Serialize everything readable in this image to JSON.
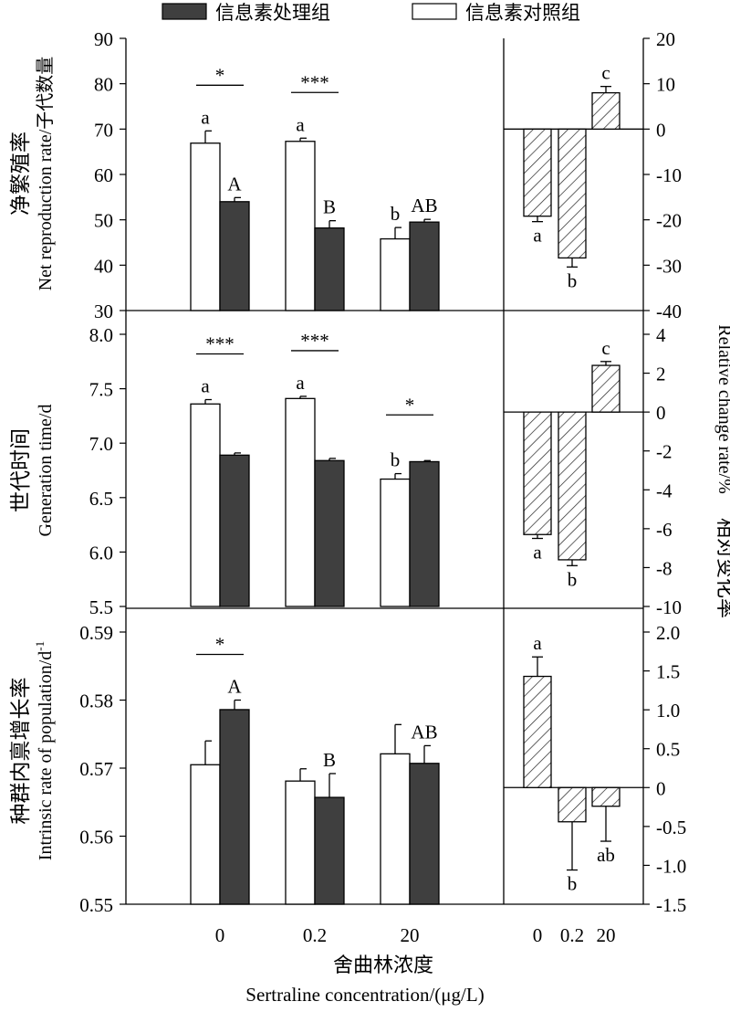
{
  "legend": {
    "treated_label": "信息素处理组",
    "control_label": "信息素对照组",
    "treated_color": "#3f3f3f",
    "control_color": "#ffffff"
  },
  "xaxis": {
    "label_cn": "舍曲林浓度",
    "label_en": "Sertraline concentration/(μg/L)"
  },
  "right_axis_label": {
    "cn": "相对变化率",
    "en": "Relative change rate/%"
  },
  "chart_data": [
    {
      "type": "bar",
      "categories": [
        "0",
        "0.2",
        "20"
      ],
      "ylabel_cn": "净繁殖率",
      "ylabel_en": "Net reproduction rate/子代数量",
      "ylim": [
        30,
        90
      ],
      "yticks": [
        "30",
        "40",
        "50",
        "60",
        "70",
        "80",
        "90"
      ],
      "series": [
        {
          "name": "信息素对照组",
          "values": [
            66.9,
            67.3,
            45.8
          ],
          "errors": [
            2.7,
            0.7,
            2.5
          ],
          "labels": [
            "a",
            "a",
            "b"
          ]
        },
        {
          "name": "信息素处理组",
          "values": [
            54.0,
            48.2,
            49.5
          ],
          "errors": [
            0.9,
            1.6,
            0.6
          ],
          "labels": [
            "A",
            "B",
            "AB"
          ]
        }
      ],
      "significance": [
        "*",
        "***",
        ""
      ],
      "relative_change": {
        "ylim": [
          -40,
          20
        ],
        "yticks": [
          "-40",
          "-30",
          "-20",
          "-10",
          "0",
          "10",
          "20"
        ],
        "categories": [
          "0",
          "0.2",
          "20"
        ],
        "values": [
          -19.2,
          -28.4,
          8.0
        ],
        "errors": [
          1.2,
          2.0,
          1.4
        ],
        "labels": [
          "a",
          "b",
          "c"
        ]
      }
    },
    {
      "type": "bar",
      "categories": [
        "0",
        "0.2",
        "20"
      ],
      "ylabel_cn": "世代时间",
      "ylabel_en": "Generation time/d",
      "ylim": [
        5.5,
        8.0
      ],
      "yticks": [
        "5.5",
        "6.0",
        "6.5",
        "7.0",
        "7.5",
        "8.0"
      ],
      "series": [
        {
          "name": "信息素对照组",
          "values": [
            7.36,
            7.41,
            6.67
          ],
          "errors": [
            0.04,
            0.02,
            0.05
          ],
          "labels": [
            "a",
            "a",
            "b"
          ]
        },
        {
          "name": "信息素处理组",
          "values": [
            6.89,
            6.84,
            6.83
          ],
          "errors": [
            0.02,
            0.02,
            0.01
          ],
          "labels": [
            "",
            "",
            ""
          ]
        }
      ],
      "significance": [
        "***",
        "***",
        "*"
      ],
      "relative_change": {
        "ylim": [
          -10,
          4
        ],
        "yticks": [
          "-10",
          "-8",
          "-6",
          "-4",
          "-2",
          "0",
          "2",
          "4"
        ],
        "categories": [
          "0",
          "0.2",
          "20"
        ],
        "values": [
          -6.3,
          -7.6,
          2.4
        ],
        "errors": [
          0.2,
          0.3,
          0.2
        ],
        "labels": [
          "a",
          "b",
          "c"
        ]
      }
    },
    {
      "type": "bar",
      "categories": [
        "0",
        "0.2",
        "20"
      ],
      "ylabel_cn": "种群内禀增长率",
      "ylabel_en": "Intrinsic rate of population/d",
      "ylabel_sup": "-1",
      "ylim": [
        0.55,
        0.59
      ],
      "yticks": [
        "0.55",
        "0.56",
        "0.57",
        "0.58",
        "0.59"
      ],
      "series": [
        {
          "name": "信息素对照组",
          "values": [
            0.5705,
            0.5681,
            0.5721
          ],
          "errors": [
            0.0035,
            0.0018,
            0.0043
          ],
          "labels": [
            "",
            "",
            ""
          ]
        },
        {
          "name": "信息素处理组",
          "values": [
            0.5786,
            0.5657,
            0.5707
          ],
          "errors": [
            0.0014,
            0.0035,
            0.0026
          ],
          "labels": [
            "A",
            "B",
            "AB"
          ]
        }
      ],
      "significance": [
        "*",
        "",
        ""
      ],
      "relative_change": {
        "ylim": [
          -1.5,
          2.0
        ],
        "yticks": [
          "-1.5",
          "-1.0",
          "-0.5",
          "0",
          "0.5",
          "1.0",
          "1.5",
          "2.0"
        ],
        "categories": [
          "0",
          "0.2",
          "20"
        ],
        "values": [
          1.43,
          -0.44,
          -0.24
        ],
        "errors": [
          0.25,
          0.62,
          0.45
        ],
        "labels": [
          "a",
          "b",
          "ab"
        ]
      }
    }
  ]
}
